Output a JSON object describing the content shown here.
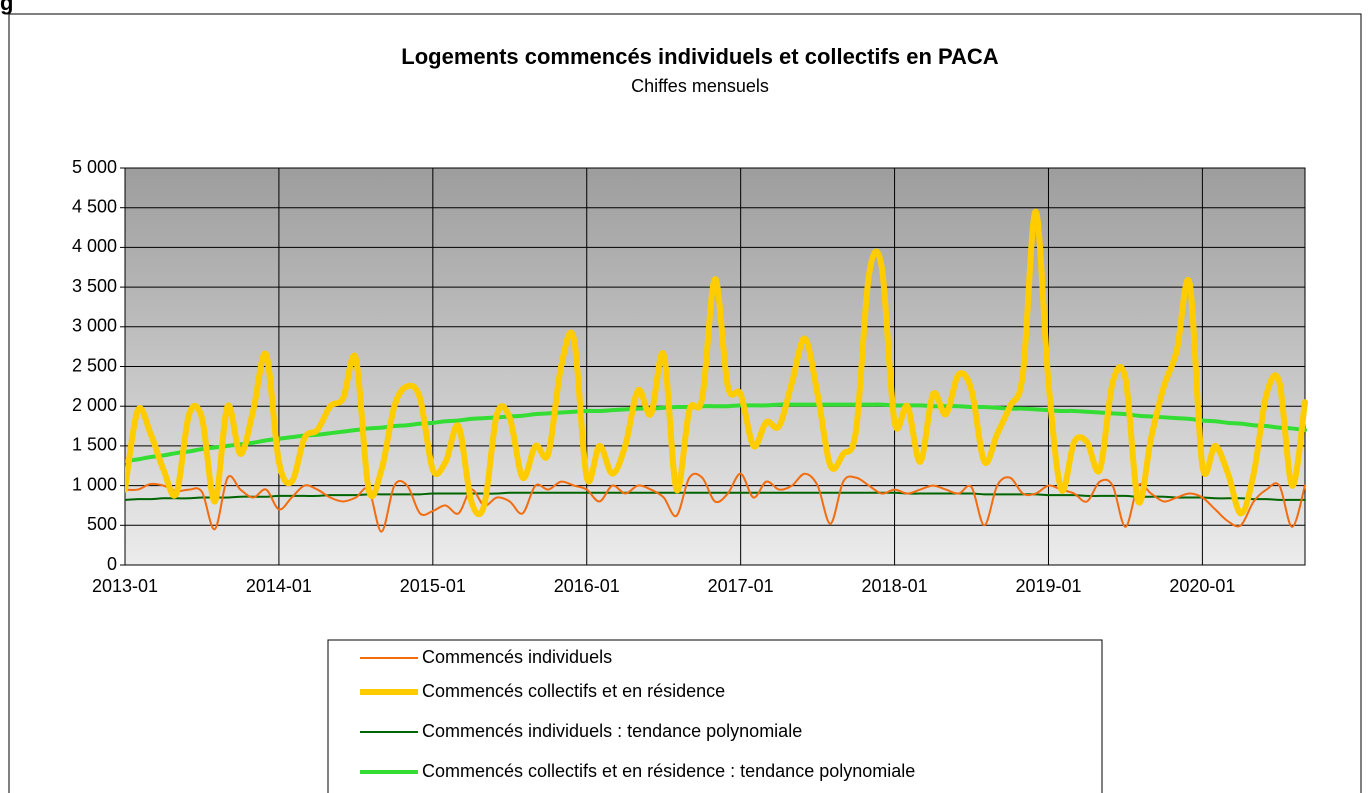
{
  "header_fragment": "g",
  "chart_data": {
    "type": "line",
    "title": "Logements commencés individuels et collectifs en PACA",
    "subtitle": "Chiffes mensuels",
    "categories": [
      "2013-01",
      null,
      null,
      null,
      null,
      null,
      null,
      null,
      null,
      null,
      null,
      null,
      "2014-01",
      null,
      null,
      null,
      null,
      null,
      null,
      null,
      null,
      null,
      null,
      null,
      "2015-01",
      null,
      null,
      null,
      null,
      null,
      null,
      null,
      null,
      null,
      null,
      null,
      "2016-01",
      null,
      null,
      null,
      null,
      null,
      null,
      null,
      null,
      null,
      null,
      null,
      "2017-01",
      null,
      null,
      null,
      null,
      null,
      null,
      null,
      null,
      null,
      null,
      null,
      "2018-01",
      null,
      null,
      null,
      null,
      null,
      null,
      null,
      null,
      null,
      null,
      null,
      "2019-01",
      null,
      null,
      null,
      null,
      null,
      null,
      null,
      null,
      null,
      null,
      null,
      "2020-01",
      null,
      null,
      null,
      null,
      null,
      null,
      null,
      null
    ],
    "ylim": [
      0,
      5000
    ],
    "yticks": [
      0,
      500,
      {
        "value": 1000,
        "label": "1 000"
      },
      {
        "value": 1500,
        "label": "1 500"
      },
      {
        "value": 2000,
        "label": "2 000"
      },
      {
        "value": 2500,
        "label": "2 500"
      },
      {
        "value": 3000,
        "label": "3 000"
      },
      {
        "value": 3500,
        "label": "3 500"
      },
      {
        "value": 4000,
        "label": "4 000"
      },
      {
        "value": 4500,
        "label": "4 500"
      },
      {
        "value": 5000,
        "label": "5 000"
      }
    ],
    "grid": true,
    "smooth": true,
    "legend": "bottom",
    "series": [
      {
        "name": "Commencés individuels",
        "color": "#f26d0f",
        "width": 2,
        "values": [
          950,
          950,
          1020,
          1000,
          930,
          950,
          920,
          450,
          1100,
          950,
          850,
          950,
          700,
          850,
          1000,
          950,
          850,
          800,
          850,
          950,
          420,
          1000,
          1000,
          650,
          680,
          750,
          650,
          950,
          750,
          850,
          800,
          650,
          1000,
          950,
          1050,
          1000,
          950,
          800,
          1000,
          900,
          1000,
          950,
          850,
          620,
          1100,
          1100,
          800,
          900,
          1150,
          850,
          1050,
          950,
          1000,
          1150,
          1000,
          520,
          1050,
          1100,
          1000,
          900,
          950,
          900,
          950,
          1000,
          950,
          900,
          980,
          500,
          1000,
          1100,
          900,
          900,
          1000,
          950,
          900,
          800,
          1050,
          1000,
          480,
          1000,
          900,
          800,
          850,
          900,
          850,
          700,
          550,
          500,
          800,
          950,
          1000,
          480,
          1000
        ]
      },
      {
        "name": "Commencés collectifs et en résidence",
        "color": "#ffcc00",
        "width": 6,
        "values": [
          950,
          1950,
          1650,
          1200,
          900,
          1900,
          1850,
          800,
          2000,
          1400,
          1950,
          2650,
          1300,
          1050,
          1600,
          1700,
          2000,
          2100,
          2600,
          950,
          1200,
          2000,
          2250,
          2100,
          1200,
          1300,
          1750,
          800,
          750,
          1900,
          1850,
          1100,
          1500,
          1400,
          2500,
          2850,
          1100,
          1500,
          1150,
          1500,
          2200,
          1900,
          2650,
          950,
          1950,
          2100,
          3600,
          2250,
          2150,
          1500,
          1800,
          1750,
          2300,
          2850,
          2150,
          1250,
          1400,
          1700,
          3650,
          3750,
          1800,
          2000,
          1300,
          2150,
          1900,
          2400,
          2200,
          1300,
          1650,
          2000,
          2400,
          4450,
          2300,
          950,
          1550,
          1550,
          1200,
          2300,
          2350,
          800,
          1600,
          2250,
          2700,
          3550,
          1250,
          1500,
          1150,
          650,
          1150,
          2150,
          2300,
          1000,
          2050
        ]
      },
      {
        "name": "Commencés individuels : tendance polynomiale",
        "color": "#006400",
        "width": 2,
        "values": [
          820,
          830,
          830,
          840,
          840,
          840,
          850,
          850,
          850,
          860,
          860,
          860,
          870,
          870,
          870,
          870,
          880,
          880,
          880,
          890,
          890,
          890,
          890,
          890,
          900,
          900,
          900,
          900,
          900,
          900,
          910,
          910,
          910,
          910,
          910,
          910,
          910,
          910,
          910,
          910,
          910,
          910,
          910,
          910,
          910,
          910,
          910,
          910,
          910,
          910,
          910,
          910,
          910,
          910,
          910,
          910,
          910,
          910,
          910,
          910,
          910,
          900,
          900,
          900,
          900,
          900,
          900,
          890,
          890,
          890,
          890,
          890,
          880,
          880,
          880,
          870,
          870,
          870,
          870,
          860,
          860,
          860,
          850,
          850,
          850,
          840,
          840,
          840,
          830,
          830,
          820,
          820,
          820
        ]
      },
      {
        "name": "Commencés collectifs et en résidence : tendance polynomiale",
        "color": "#33dd33",
        "width": 4,
        "values": [
          1310,
          1330,
          1360,
          1380,
          1410,
          1430,
          1460,
          1480,
          1500,
          1520,
          1540,
          1570,
          1590,
          1610,
          1630,
          1640,
          1660,
          1680,
          1700,
          1720,
          1730,
          1750,
          1760,
          1780,
          1790,
          1810,
          1820,
          1840,
          1850,
          1860,
          1870,
          1880,
          1900,
          1910,
          1920,
          1930,
          1940,
          1940,
          1950,
          1960,
          1970,
          1970,
          1980,
          1990,
          1990,
          2000,
          2000,
          2000,
          2010,
          2010,
          2010,
          2020,
          2020,
          2020,
          2020,
          2020,
          2020,
          2020,
          2020,
          2020,
          2010,
          2010,
          2010,
          2000,
          2000,
          2000,
          1990,
          1990,
          1980,
          1970,
          1970,
          1960,
          1950,
          1940,
          1940,
          1930,
          1920,
          1910,
          1900,
          1880,
          1870,
          1860,
          1850,
          1840,
          1820,
          1810,
          1790,
          1780,
          1760,
          1750,
          1730,
          1720,
          1700
        ]
      }
    ]
  }
}
